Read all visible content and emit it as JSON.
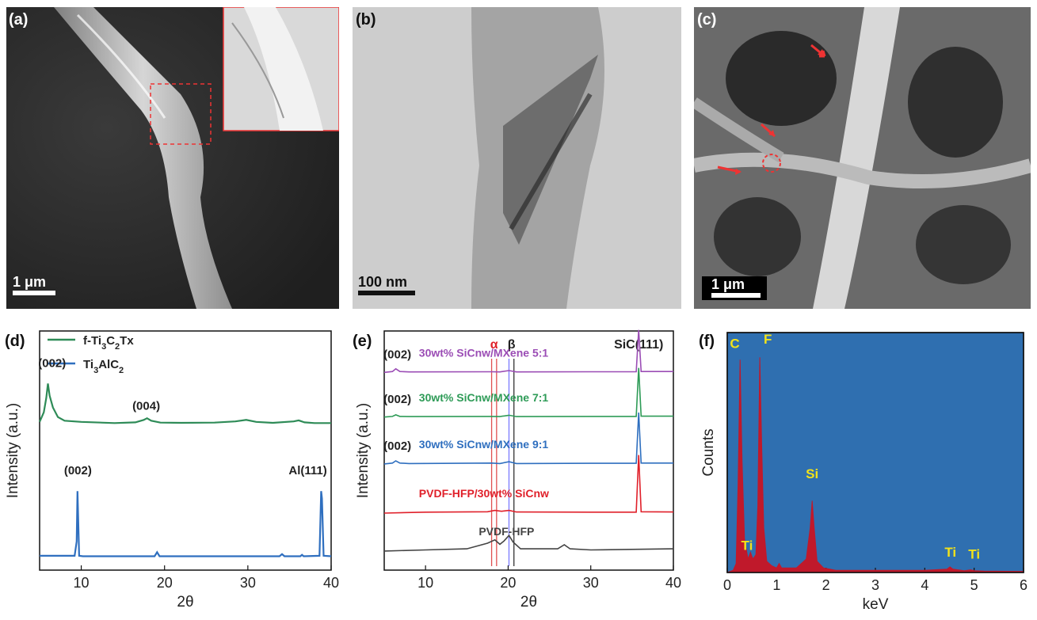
{
  "panels": {
    "a": {
      "label": "(a)",
      "scale": "1 μm"
    },
    "b": {
      "label": "(b)",
      "scale": "100 nm"
    },
    "c": {
      "label": "(c)",
      "scale": "1 μm"
    },
    "d": {
      "label": "(d)"
    },
    "e": {
      "label": "(e)"
    },
    "f": {
      "label": "(f)"
    }
  },
  "chart_data": [
    {
      "id": "d",
      "type": "line",
      "xlabel": "2θ",
      "ylabel": "Intensity (a.u.)",
      "xlim": [
        5,
        40
      ],
      "xticks": [
        10,
        20,
        30,
        40
      ],
      "legend": {
        "placement": "top-left",
        "entries": [
          {
            "name": "f-Ti3C2Tx",
            "color": "#2e8b57"
          },
          {
            "name": "Ti3AlC2",
            "color": "#2f6fbf"
          }
        ]
      },
      "series": [
        {
          "name": "f-Ti3C2Tx",
          "color": "#2e8b57",
          "x": [
            5,
            5.5,
            5.8,
            6.0,
            6.2,
            6.6,
            7.2,
            8,
            10,
            14,
            16.5,
            17.5,
            17.9,
            18.4,
            19.5,
            22,
            26,
            28.5,
            29.8,
            31,
            33,
            35.5,
            36.1,
            36.8,
            38,
            40
          ],
          "y": [
            0.62,
            0.66,
            0.72,
            0.78,
            0.73,
            0.68,
            0.64,
            0.625,
            0.62,
            0.615,
            0.618,
            0.628,
            0.635,
            0.625,
            0.617,
            0.616,
            0.617,
            0.622,
            0.628,
            0.62,
            0.616,
            0.622,
            0.626,
            0.618,
            0.615,
            0.615
          ]
        },
        {
          "name": "Ti3AlC2",
          "color": "#2f6fbf",
          "x": [
            5,
            9.2,
            9.45,
            9.55,
            9.75,
            10.2,
            18.8,
            19.1,
            19.4,
            33.8,
            34.1,
            34.4,
            36.3,
            36.5,
            36.7,
            38.6,
            38.8,
            38.9,
            39.1,
            40
          ],
          "y": [
            0.06,
            0.06,
            0.12,
            0.33,
            0.06,
            0.058,
            0.058,
            0.075,
            0.058,
            0.058,
            0.067,
            0.058,
            0.058,
            0.064,
            0.058,
            0.06,
            0.33,
            0.3,
            0.06,
            0.058
          ]
        }
      ],
      "annotations": [
        {
          "text": "(002)",
          "x": 6.5,
          "y": 0.85
        },
        {
          "text": "(004)",
          "x": 17.8,
          "y": 0.67
        },
        {
          "text": "(002)",
          "x": 9.6,
          "y": 0.4
        },
        {
          "text": "Al(111)",
          "x": 37.2,
          "y": 0.4
        }
      ]
    },
    {
      "id": "e",
      "type": "line",
      "xlabel": "2θ",
      "ylabel": "Intensity (a.u.)",
      "xlim": [
        5,
        40
      ],
      "xticks": [
        10,
        20,
        30,
        40
      ],
      "vlines": [
        {
          "x": 18.0,
          "color": "#e05050"
        },
        {
          "x": 18.6,
          "color": "#e05050"
        },
        {
          "x": 20.1,
          "color": "#7a7aff"
        },
        {
          "x": 20.7,
          "color": "#333333"
        }
      ],
      "top_labels": [
        {
          "text": "α",
          "x": 18.3,
          "color": "#e0202a"
        },
        {
          "text": "β",
          "x": 20.4,
          "color": "#222222"
        },
        {
          "text": "SiC(111)",
          "x": 35.8,
          "color": "#222222"
        }
      ],
      "series": [
        {
          "name": "PVDF-HFP",
          "label": "PVDF-HFP",
          "color": "#444444",
          "label_x": 21,
          "offset": 0.05,
          "x": [
            5,
            10,
            15,
            17.5,
            18.4,
            19.0,
            19.5,
            20.1,
            20.6,
            21.5,
            26,
            26.8,
            27.5,
            30,
            40
          ],
          "y": [
            0,
            0.005,
            0.01,
            0.035,
            0.05,
            0.03,
            0.045,
            0.07,
            0.04,
            0.01,
            0.01,
            0.028,
            0.01,
            0.005,
            0.01
          ]
        },
        {
          "name": "PVDF-HFP/30wt% SiCnw",
          "label": "PVDF-HFP/30wt% SiCnw",
          "color": "#e0202a",
          "label_x": 21,
          "offset": 0.22,
          "x": [
            5,
            10,
            17.5,
            18.4,
            19.2,
            20.1,
            21,
            30,
            35.5,
            35.8,
            36.1,
            40
          ],
          "y": [
            0,
            0.004,
            0.006,
            0.012,
            0.008,
            0.012,
            0.005,
            0.004,
            0.004,
            0.26,
            0.006,
            0.005
          ]
        },
        {
          "name": "30wt% SiCnw/MXene 9:1",
          "label": "30wt% SiCnw/MXene 9:1",
          "color": "#2f6fbf",
          "label_x": 21,
          "offset": 0.44,
          "peak_label": "(002)",
          "x": [
            5,
            6,
            6.4,
            6.9,
            8,
            18,
            19,
            20.1,
            21,
            30,
            35.5,
            35.8,
            36.1,
            40
          ],
          "y": [
            0,
            0.004,
            0.014,
            0.004,
            0.002,
            0.004,
            0.002,
            0.01,
            0.002,
            0.003,
            0.003,
            0.23,
            0.004,
            0.004
          ]
        },
        {
          "name": "30wt% SiCnw/MXene 7:1",
          "label": "30wt% SiCnw/MXene 7:1",
          "color": "#2e9b57",
          "label_x": 21,
          "offset": 0.65,
          "peak_label": "(002)",
          "x": [
            5,
            6,
            6.4,
            6.9,
            8,
            18,
            19,
            20.1,
            21,
            30,
            35.5,
            35.8,
            36.1,
            40
          ],
          "y": [
            0,
            0.003,
            0.01,
            0.003,
            0.002,
            0.003,
            0.002,
            0.008,
            0.002,
            0.003,
            0.003,
            0.22,
            0.004,
            0.004
          ]
        },
        {
          "name": "30wt% SiCnw/MXene 5:1",
          "label": "30wt% SiCnw/MXene 5:1",
          "color": "#9b4db5",
          "label_x": 21,
          "offset": 0.85,
          "peak_label": "(002)",
          "x": [
            5,
            6,
            6.4,
            6.9,
            8,
            18,
            19,
            20.1,
            21,
            30,
            35.5,
            35.8,
            36.1,
            40
          ],
          "y": [
            0,
            0.004,
            0.016,
            0.004,
            0.002,
            0.003,
            0.002,
            0.008,
            0.002,
            0.003,
            0.003,
            0.19,
            0.004,
            0.004
          ]
        }
      ]
    },
    {
      "id": "f",
      "type": "area",
      "xlabel": "keV",
      "ylabel": "Counts",
      "xlim": [
        0,
        6
      ],
      "xticks": [
        0,
        1,
        2,
        3,
        4,
        5,
        6
      ],
      "background": "#2f6fb0",
      "fill": "#c0192b",
      "label_color": "#f2e21a",
      "x": [
        0,
        0.12,
        0.18,
        0.22,
        0.26,
        0.3,
        0.35,
        0.42,
        0.47,
        0.52,
        0.58,
        0.62,
        0.66,
        0.7,
        0.74,
        0.8,
        0.9,
        1.0,
        1.05,
        1.1,
        1.4,
        1.6,
        1.68,
        1.72,
        1.76,
        1.82,
        1.95,
        2.2,
        3,
        4,
        4.45,
        4.51,
        4.57,
        4.8,
        4.93,
        5.0,
        5.2,
        6
      ],
      "y": [
        0,
        0.01,
        0.04,
        0.4,
        0.95,
        0.5,
        0.15,
        0.06,
        0.09,
        0.06,
        0.08,
        0.3,
        0.96,
        0.55,
        0.2,
        0.05,
        0.03,
        0.02,
        0.04,
        0.02,
        0.02,
        0.06,
        0.2,
        0.32,
        0.2,
        0.05,
        0.02,
        0.01,
        0.01,
        0.01,
        0.015,
        0.025,
        0.015,
        0.008,
        0.012,
        0.008,
        0.006,
        0.005
      ],
      "labels": [
        {
          "text": "C",
          "x": 0.2,
          "y": 0.98
        },
        {
          "text": "F",
          "x": 0.66,
          "y": 1.0
        },
        {
          "text": "Si",
          "x": 1.72,
          "y": 0.4
        },
        {
          "text": "Ti",
          "x": 0.4,
          "y": 0.08
        },
        {
          "text": "Ti",
          "x": 4.52,
          "y": 0.05
        },
        {
          "text": "Ti",
          "x": 5.0,
          "y": 0.04
        }
      ]
    }
  ]
}
